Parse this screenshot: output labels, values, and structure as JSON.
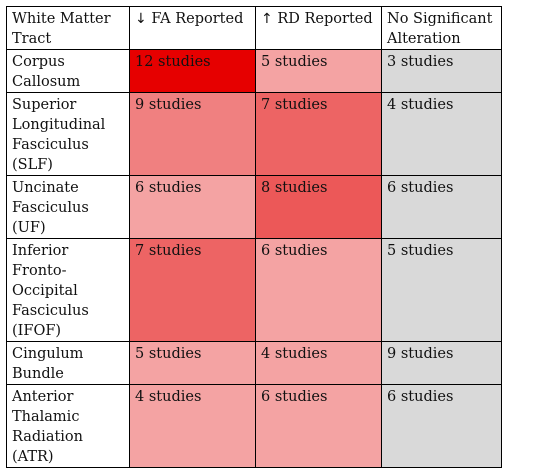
{
  "table": {
    "headers": [
      {
        "arrow": "",
        "label": "White Matter Tract"
      },
      {
        "arrow": "↓",
        "label": "FA Reported"
      },
      {
        "arrow": "↑",
        "label": "RD Reported"
      },
      {
        "arrow": "",
        "label": "No Significant Alteration"
      }
    ],
    "rows": [
      {
        "tract": "Corpus Callosum",
        "fa": "12 studies",
        "rd": "5 studies",
        "ns": "3 studies",
        "fa_color": "#e60000",
        "rd_color": "#f4a3a3"
      },
      {
        "tract": "Superior Longitudinal Fasciculus (SLF)",
        "fa": "9 studies",
        "rd": "7 studies",
        "ns": "4 studies",
        "fa_color": "#f08080",
        "rd_color": "#ed6464"
      },
      {
        "tract": "Uncinate Fasciculus (UF)",
        "fa": "6 studies",
        "rd": "8 studies",
        "ns": "6 studies",
        "fa_color": "#f4a3a3",
        "rd_color": "#ec5858"
      },
      {
        "tract": "Inferior Fronto-Occipital Fasciculus (IFOF)",
        "fa": "7 studies",
        "rd": "6 studies",
        "ns": "5 studies",
        "fa_color": "#ed6464",
        "rd_color": "#f4a3a3"
      },
      {
        "tract": "Cingulum Bundle",
        "fa": "5 studies",
        "rd": "4 studies",
        "ns": "9 studies",
        "fa_color": "#f4a3a3",
        "rd_color": "#f4a3a3"
      },
      {
        "tract": "Anterior Thalamic Radiation (ATR)",
        "fa": "4 studies",
        "rd": "6 studies",
        "ns": "6 studies",
        "fa_color": "#f4a3a3",
        "rd_color": "#f4a3a3"
      }
    ]
  }
}
